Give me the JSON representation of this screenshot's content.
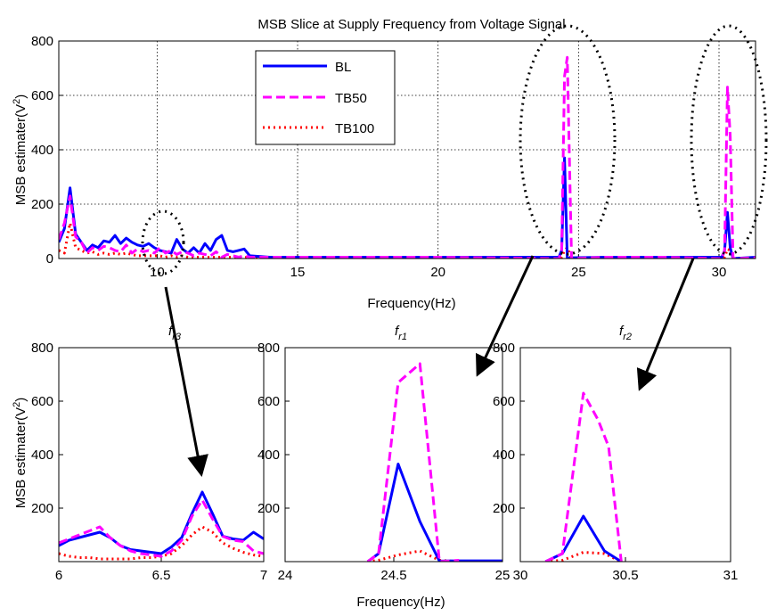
{
  "colors": {
    "BL": "#0000ff",
    "TB50": "#ff00ff",
    "TB100": "#ff0000",
    "annotation": "#000000"
  },
  "chart_data": [
    {
      "type": "line",
      "title": "MSB Slice at Supply Frequency from Voltage Signal",
      "xlabel": "Frequency(Hz)",
      "ylabel": "MSB estimater(V²)",
      "xlim": [
        6.5,
        31.3
      ],
      "ylim": [
        0,
        800
      ],
      "xticks": [
        10,
        15,
        20,
        25,
        30
      ],
      "yticks": [
        0,
        200,
        400,
        600,
        800
      ],
      "grid": true,
      "legend": {
        "placement": "top-center",
        "entries": [
          "BL",
          "TB50",
          "TB100"
        ]
      },
      "series": [
        {
          "name": "BL",
          "style": "solid",
          "x": [
            6.5,
            6.7,
            6.9,
            7.1,
            7.3,
            7.5,
            7.7,
            7.9,
            8.1,
            8.3,
            8.5,
            8.7,
            8.9,
            9.1,
            9.3,
            9.5,
            9.7,
            9.9,
            10.1,
            10.3,
            10.5,
            10.7,
            10.9,
            11.1,
            11.3,
            11.5,
            11.7,
            11.9,
            12.1,
            12.3,
            12.5,
            12.7,
            12.9,
            13.1,
            13.3,
            14,
            16,
            20,
            24.3,
            24.4,
            24.5,
            24.6,
            24.75,
            26,
            28,
            30.1,
            30.2,
            30.3,
            30.4,
            30.5,
            31.3
          ],
          "y": [
            60,
            110,
            260,
            90,
            60,
            30,
            50,
            40,
            65,
            60,
            85,
            55,
            75,
            60,
            50,
            45,
            55,
            40,
            30,
            25,
            20,
            70,
            35,
            20,
            40,
            20,
            55,
            30,
            70,
            85,
            30,
            25,
            30,
            35,
            10,
            5,
            5,
            5,
            5,
            30,
            370,
            0,
            3,
            5,
            5,
            5,
            30,
            170,
            40,
            0,
            5
          ]
        },
        {
          "name": "TB50",
          "style": "dashed",
          "x": [
            6.5,
            6.7,
            6.9,
            7.1,
            7.3,
            7.5,
            7.7,
            7.9,
            8.1,
            8.3,
            8.5,
            8.7,
            8.9,
            9.1,
            9.3,
            9.5,
            9.7,
            9.9,
            10.1,
            10.3,
            10.5,
            10.7,
            10.9,
            11.1,
            11.3,
            11.5,
            11.7,
            11.9,
            12.1,
            12.3,
            12.5,
            12.7,
            12.9,
            13.1,
            13.3,
            14,
            16,
            20,
            24.3,
            24.4,
            24.5,
            24.6,
            24.75,
            26,
            28,
            30.1,
            30.2,
            30.3,
            30.4,
            30.5,
            31.3
          ],
          "y": [
            70,
            130,
            230,
            80,
            60,
            20,
            40,
            30,
            45,
            40,
            30,
            25,
            50,
            20,
            35,
            25,
            30,
            20,
            40,
            20,
            30,
            15,
            25,
            20,
            10,
            20,
            15,
            10,
            25,
            5,
            15,
            10,
            5,
            10,
            5,
            5,
            5,
            5,
            0,
            30,
            670,
            740,
            0,
            5,
            5,
            0,
            30,
            630,
            450,
            0,
            3
          ]
        },
        {
          "name": "TB100",
          "style": "dotted",
          "x": [
            6.5,
            6.7,
            6.9,
            7.1,
            7.3,
            7.5,
            7.7,
            7.9,
            8.1,
            8.3,
            8.5,
            8.7,
            8.9,
            9.1,
            9.3,
            9.5,
            9.7,
            9.9,
            10.1,
            10.3,
            10.5,
            10.7,
            10.9,
            11.1,
            11.3,
            11.5,
            11.7,
            11.9,
            12.1,
            12.3,
            12.5,
            12.7,
            12.9,
            13.1,
            13.3,
            14,
            16,
            20,
            24.3,
            24.4,
            24.5,
            24.6,
            24.75,
            26,
            28,
            30.1,
            30.2,
            30.3,
            30.4,
            30.5,
            31.3
          ],
          "y": [
            30,
            20,
            130,
            40,
            30,
            20,
            25,
            15,
            20,
            15,
            20,
            15,
            20,
            15,
            10,
            10,
            10,
            10,
            10,
            5,
            10,
            5,
            10,
            5,
            5,
            5,
            5,
            5,
            5,
            5,
            5,
            5,
            5,
            5,
            3,
            3,
            3,
            3,
            0,
            5,
            30,
            40,
            0,
            0,
            0,
            0,
            5,
            35,
            30,
            0,
            0
          ]
        }
      ],
      "annotations": []
    },
    {
      "type": "line",
      "title": "f_r3",
      "title_main": "f",
      "title_sub": "r3",
      "xlabel": "",
      "ylabel": "MSB estimater(V²)",
      "xlim": [
        6,
        7
      ],
      "ylim": [
        0,
        800
      ],
      "xticks": [
        "6",
        "6.5",
        "7"
      ],
      "xtick_values": [
        6,
        6.5,
        7
      ],
      "yticks": [
        "200",
        "400",
        "600",
        "800"
      ],
      "ytick_values": [
        200,
        400,
        600,
        800
      ],
      "series": [
        {
          "name": "BL",
          "style": "solid",
          "x": [
            6,
            6.05,
            6.1,
            6.15,
            6.2,
            6.25,
            6.3,
            6.35,
            6.4,
            6.45,
            6.5,
            6.55,
            6.6,
            6.65,
            6.7,
            6.75,
            6.8,
            6.85,
            6.9,
            6.95,
            7
          ],
          "y": [
            60,
            80,
            90,
            100,
            110,
            90,
            60,
            45,
            40,
            35,
            30,
            55,
            90,
            180,
            260,
            180,
            95,
            85,
            80,
            110,
            85
          ]
        },
        {
          "name": "TB50",
          "style": "dashed",
          "x": [
            6,
            6.05,
            6.1,
            6.15,
            6.2,
            6.25,
            6.3,
            6.35,
            6.4,
            6.45,
            6.5,
            6.55,
            6.6,
            6.65,
            6.7,
            6.75,
            6.8,
            6.85,
            6.9,
            6.95,
            7
          ],
          "y": [
            70,
            85,
            100,
            115,
            130,
            90,
            60,
            40,
            30,
            25,
            20,
            40,
            80,
            170,
            230,
            160,
            95,
            80,
            75,
            40,
            30
          ]
        },
        {
          "name": "TB100",
          "style": "dotted",
          "x": [
            6,
            6.05,
            6.1,
            6.15,
            6.2,
            6.25,
            6.3,
            6.35,
            6.4,
            6.45,
            6.5,
            6.55,
            6.6,
            6.65,
            6.7,
            6.75,
            6.8,
            6.85,
            6.9,
            6.95,
            7
          ],
          "y": [
            30,
            20,
            15,
            15,
            10,
            10,
            10,
            10,
            15,
            15,
            20,
            30,
            60,
            100,
            130,
            110,
            70,
            50,
            35,
            25,
            20
          ]
        }
      ]
    },
    {
      "type": "line",
      "title": "f_r1",
      "title_main": "f",
      "title_sub": "r1",
      "xlabel": "Frequency(Hz)",
      "ylabel": "",
      "xlim": [
        24,
        25
      ],
      "ylim": [
        0,
        800
      ],
      "xticks": [
        "24",
        "24.5",
        "25"
      ],
      "xtick_values": [
        24,
        24.5,
        25
      ],
      "yticks": [
        "200",
        "400",
        "600",
        "800"
      ],
      "ytick_values": [
        200,
        400,
        600,
        800
      ],
      "series": [
        {
          "name": "BL",
          "style": "solid",
          "x": [
            24.38,
            24.43,
            24.52,
            24.62,
            24.71,
            24.8,
            24.9,
            25
          ],
          "y": [
            0,
            30,
            365,
            150,
            2,
            3,
            3,
            3
          ]
        },
        {
          "name": "TB50",
          "style": "dashed",
          "x": [
            24.38,
            24.43,
            24.52,
            24.62,
            24.71,
            24.8
          ],
          "y": [
            0,
            30,
            670,
            740,
            0,
            5
          ]
        },
        {
          "name": "TB100",
          "style": "dotted",
          "x": [
            24.38,
            24.43,
            24.52,
            24.62,
            24.71,
            24.8
          ],
          "y": [
            0,
            5,
            25,
            40,
            5,
            0
          ]
        }
      ]
    },
    {
      "type": "line",
      "title": "f_r2",
      "title_main": "f",
      "title_sub": "r2",
      "xlabel": "",
      "ylabel": "",
      "xlim": [
        30,
        31
      ],
      "ylim": [
        0,
        800
      ],
      "xticks": [
        "30",
        "30.5",
        "31"
      ],
      "xtick_values": [
        30,
        30.5,
        31
      ],
      "yticks": [
        "200",
        "400",
        "600",
        "800"
      ],
      "ytick_values": [
        200,
        400,
        600,
        800
      ],
      "series": [
        {
          "name": "BL",
          "style": "solid",
          "x": [
            30.12,
            30.2,
            30.3,
            30.4,
            30.48
          ],
          "y": [
            0,
            30,
            170,
            40,
            0
          ]
        },
        {
          "name": "TB50",
          "style": "dashed",
          "x": [
            30.12,
            30.2,
            30.3,
            30.37,
            30.42,
            30.48
          ],
          "y": [
            0,
            30,
            630,
            530,
            430,
            0
          ]
        },
        {
          "name": "TB100",
          "style": "dotted",
          "x": [
            30.12,
            30.2,
            30.3,
            30.4,
            30.48
          ],
          "y": [
            0,
            5,
            35,
            30,
            0
          ]
        }
      ]
    }
  ]
}
